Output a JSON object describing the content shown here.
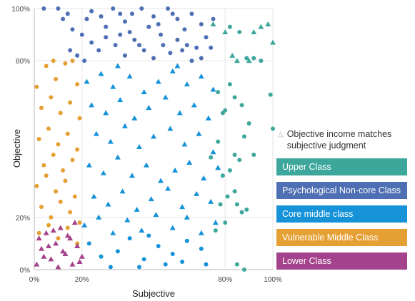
{
  "chart_data": {
    "type": "scatter",
    "xlabel": "Subjective",
    "ylabel": "Objective",
    "xlim": [
      0,
      100
    ],
    "ylim": [
      0,
      100
    ],
    "x_ticks": [
      {
        "value": 0,
        "label": "0%"
      },
      {
        "value": 20,
        "label": "20%"
      },
      {
        "value": 80,
        "label": "80%"
      },
      {
        "value": 100,
        "label": "100%"
      }
    ],
    "y_ticks": [
      {
        "value": 0,
        "label": "0%"
      },
      {
        "value": 20,
        "label": "20%"
      },
      {
        "value": 80,
        "label": "80%"
      },
      {
        "value": 100,
        "label": "100%"
      }
    ],
    "legend_placement": "right",
    "legend_note": "Objective income matches subjective judgment",
    "series": [
      {
        "name": "Upper Class",
        "color": "#3da79c",
        "points": [
          [
            82,
            93
          ],
          [
            86,
            91
          ],
          [
            89,
            81
          ],
          [
            92,
            81
          ],
          [
            95,
            80
          ],
          [
            99,
            67
          ],
          [
            82,
            71
          ],
          [
            77,
            68
          ],
          [
            84,
            66
          ],
          [
            87,
            63
          ],
          [
            80,
            61
          ],
          [
            79,
            60
          ],
          [
            90,
            56
          ],
          [
            88,
            51
          ],
          [
            100,
            54
          ],
          [
            86,
            42
          ],
          [
            84,
            44
          ],
          [
            82,
            38
          ],
          [
            79,
            36
          ],
          [
            92,
            44
          ],
          [
            77,
            49
          ],
          [
            74,
            43
          ],
          [
            84,
            30
          ],
          [
            81,
            28
          ],
          [
            85,
            25
          ],
          [
            87,
            22
          ],
          [
            78,
            25
          ],
          [
            76,
            15
          ],
          [
            85,
            2
          ],
          [
            88,
            0
          ],
          [
            80,
            18
          ],
          [
            89,
            23
          ]
        ],
        "triangles": [
          [
            75,
            94
          ],
          [
            80,
            91
          ],
          [
            83,
            82
          ],
          [
            85,
            80
          ],
          [
            90,
            80
          ],
          [
            92,
            91
          ],
          [
            95,
            93
          ],
          [
            98,
            94
          ],
          [
            100,
            87
          ]
        ]
      },
      {
        "name": "Psychological Non-core Class",
        "color": "#4e6fb4",
        "points": [
          [
            4,
            100
          ],
          [
            10,
            100
          ],
          [
            12,
            96
          ],
          [
            16,
            92
          ],
          [
            14,
            98
          ],
          [
            20,
            90
          ],
          [
            22,
            96
          ],
          [
            24,
            99
          ],
          [
            28,
            97
          ],
          [
            30,
            93
          ],
          [
            33,
            100
          ],
          [
            36,
            98
          ],
          [
            38,
            95
          ],
          [
            41,
            98
          ],
          [
            45,
            100
          ],
          [
            48,
            93
          ],
          [
            50,
            97
          ],
          [
            53,
            90
          ],
          [
            56,
            100
          ],
          [
            60,
            96
          ],
          [
            63,
            92
          ],
          [
            66,
            98
          ],
          [
            70,
            94
          ],
          [
            72,
            89
          ],
          [
            75,
            96
          ],
          [
            68,
            85
          ],
          [
            64,
            86
          ],
          [
            60,
            88
          ],
          [
            57,
            83
          ],
          [
            54,
            86
          ],
          [
            50,
            81
          ],
          [
            46,
            84
          ],
          [
            42,
            88
          ],
          [
            38,
            82
          ],
          [
            34,
            86
          ],
          [
            30,
            89
          ],
          [
            27,
            84
          ],
          [
            24,
            87
          ],
          [
            21,
            80
          ],
          [
            18,
            82
          ],
          [
            15,
            84
          ],
          [
            40,
            91
          ],
          [
            44,
            86
          ],
          [
            58,
            98
          ],
          [
            62,
            84
          ],
          [
            66,
            80
          ],
          [
            70,
            81
          ],
          [
            74,
            85
          ],
          [
            52,
            94
          ],
          [
            36,
            90
          ]
        ]
      },
      {
        "name": "Core middle class",
        "color": "#1592d8",
        "triangles": [
          [
            22,
            72
          ],
          [
            28,
            75
          ],
          [
            33,
            70
          ],
          [
            40,
            74
          ],
          [
            46,
            68
          ],
          [
            52,
            72
          ],
          [
            58,
            76
          ],
          [
            64,
            71
          ],
          [
            70,
            74
          ],
          [
            75,
            69
          ],
          [
            24,
            63
          ],
          [
            30,
            60
          ],
          [
            36,
            65
          ],
          [
            42,
            58
          ],
          [
            48,
            62
          ],
          [
            55,
            66
          ],
          [
            61,
            60
          ],
          [
            67,
            63
          ],
          [
            73,
            58
          ],
          [
            26,
            52
          ],
          [
            32,
            49
          ],
          [
            38,
            55
          ],
          [
            44,
            47
          ],
          [
            50,
            51
          ],
          [
            57,
            54
          ],
          [
            63,
            48
          ],
          [
            69,
            52
          ],
          [
            75,
            45
          ],
          [
            23,
            40
          ],
          [
            29,
            37
          ],
          [
            35,
            43
          ],
          [
            41,
            36
          ],
          [
            47,
            40
          ],
          [
            53,
            34
          ],
          [
            59,
            38
          ],
          [
            65,
            41
          ],
          [
            71,
            35
          ],
          [
            77,
            39
          ],
          [
            25,
            28
          ],
          [
            31,
            25
          ],
          [
            37,
            30
          ],
          [
            43,
            23
          ],
          [
            49,
            27
          ],
          [
            56,
            31
          ],
          [
            62,
            24
          ],
          [
            68,
            29
          ],
          [
            74,
            26
          ],
          [
            21,
            17
          ],
          [
            27,
            20
          ],
          [
            33,
            14
          ],
          [
            39,
            19
          ],
          [
            45,
            15
          ],
          [
            51,
            21
          ],
          [
            58,
            16
          ],
          [
            64,
            20
          ],
          [
            70,
            14
          ],
          [
            76,
            18
          ],
          [
            35,
            78
          ],
          [
            60,
            78
          ]
        ],
        "points": [
          [
            23,
            10
          ],
          [
            28,
            5
          ],
          [
            35,
            7
          ],
          [
            40,
            12
          ],
          [
            46,
            4
          ],
          [
            52,
            9
          ],
          [
            58,
            6
          ],
          [
            64,
            11
          ],
          [
            70,
            8
          ],
          [
            32,
            1
          ],
          [
            44,
            1
          ],
          [
            55,
            2
          ],
          [
            62,
            3
          ],
          [
            72,
            2
          ],
          [
            48,
            13
          ]
        ]
      },
      {
        "name": "Vulnerable Middle Class",
        "color": "#e5a033",
        "points": [
          [
            1,
            70
          ],
          [
            5,
            78
          ],
          [
            9,
            73
          ],
          [
            13,
            79
          ],
          [
            18,
            71
          ],
          [
            3,
            62
          ],
          [
            7,
            66
          ],
          [
            11,
            60
          ],
          [
            15,
            64
          ],
          [
            19,
            58
          ],
          [
            2,
            50
          ],
          [
            6,
            54
          ],
          [
            10,
            48
          ],
          [
            14,
            52
          ],
          [
            18,
            46
          ],
          [
            4,
            40
          ],
          [
            8,
            44
          ],
          [
            12,
            38
          ],
          [
            16,
            42
          ],
          [
            1,
            32
          ],
          [
            5,
            36
          ],
          [
            9,
            30
          ],
          [
            13,
            34
          ],
          [
            17,
            28
          ],
          [
            3,
            24
          ],
          [
            7,
            20
          ],
          [
            11,
            26
          ],
          [
            15,
            22
          ],
          [
            19,
            18
          ],
          [
            2,
            14
          ],
          [
            6,
            17
          ],
          [
            10,
            12
          ],
          [
            14,
            16
          ],
          [
            18,
            10
          ],
          [
            8,
            80
          ],
          [
            16,
            80
          ]
        ]
      },
      {
        "name": "Lower Class",
        "color": "#a4428c",
        "triangles": [
          [
            1,
            2
          ],
          [
            3,
            8
          ],
          [
            5,
            14
          ],
          [
            7,
            4
          ],
          [
            9,
            10
          ],
          [
            11,
            16
          ],
          [
            13,
            6
          ],
          [
            15,
            12
          ],
          [
            17,
            18
          ],
          [
            19,
            3
          ],
          [
            2,
            12
          ],
          [
            4,
            5
          ],
          [
            6,
            9
          ],
          [
            8,
            15
          ],
          [
            10,
            1
          ],
          [
            12,
            7
          ],
          [
            14,
            13
          ],
          [
            16,
            2
          ],
          [
            18,
            9
          ],
          [
            20,
            5
          ]
        ]
      }
    ]
  }
}
